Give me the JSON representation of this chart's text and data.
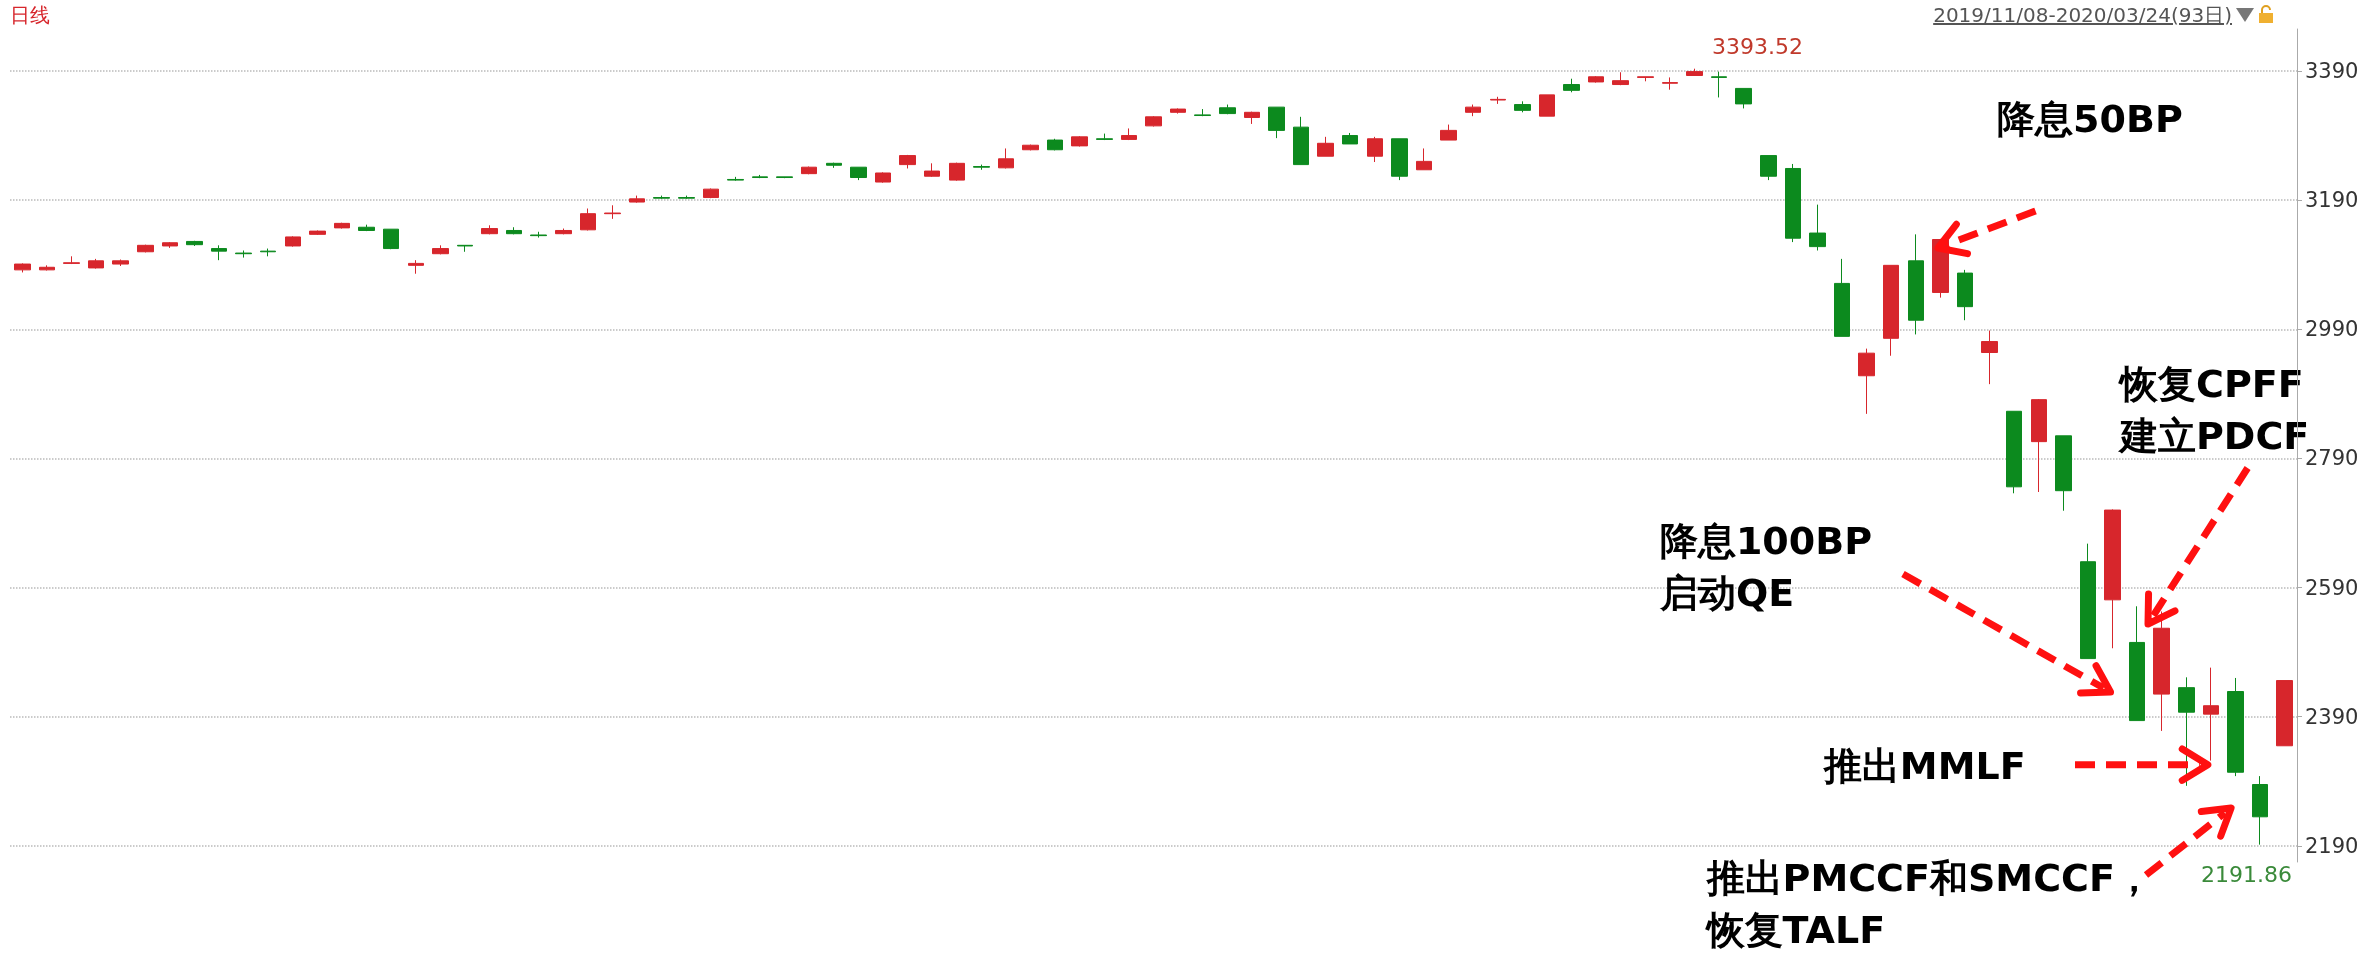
{
  "chart_data": {
    "type": "candlestick",
    "title": "日线",
    "subtitle": "2019/11/08-2020/03/24(93日)",
    "categories": [
      null,
      null,
      null,
      null,
      null,
      null,
      null,
      null,
      null,
      null,
      null,
      null,
      null,
      null,
      null,
      null,
      null,
      null,
      null,
      null,
      null,
      null,
      null,
      null,
      null,
      null,
      null,
      null,
      null,
      null,
      null,
      null,
      null,
      null,
      null,
      null,
      null,
      null,
      null,
      null,
      null,
      null,
      null,
      null,
      null,
      null,
      null,
      null,
      null,
      null,
      null,
      null,
      null,
      null,
      null,
      null,
      null,
      null,
      null,
      null,
      null,
      null,
      null,
      null,
      null,
      null,
      null,
      null,
      null,
      null,
      null,
      null,
      null,
      null,
      null,
      null,
      null,
      null,
      null,
      null,
      null,
      null,
      null,
      null,
      null,
      null,
      null,
      null,
      null,
      null,
      null,
      null,
      null
    ],
    "ohlc": [
      [
        3082,
        3092,
        3078,
        3091
      ],
      [
        3082,
        3089,
        3081,
        3086
      ],
      [
        3092,
        3103,
        3091,
        3093
      ],
      [
        3085,
        3099,
        3084,
        3096
      ],
      [
        3091,
        3098,
        3088,
        3096
      ],
      [
        3110,
        3121,
        3109,
        3120
      ],
      [
        3119,
        3125,
        3116,
        3124
      ],
      [
        3126,
        3127,
        3119,
        3121
      ],
      [
        3115,
        3120,
        3097,
        3111
      ],
      [
        3108,
        3112,
        3101,
        3107
      ],
      [
        3111,
        3115,
        3103,
        3110
      ],
      [
        3119,
        3134,
        3118,
        3133
      ],
      [
        3137,
        3143,
        3136,
        3142
      ],
      [
        3147,
        3155,
        3146,
        3154
      ],
      [
        3148,
        3152,
        3142,
        3143
      ],
      [
        3145,
        3145,
        3114,
        3115
      ],
      [
        3089,
        3097,
        3076,
        3092
      ],
      [
        3107,
        3120,
        3106,
        3115
      ],
      [
        3120,
        3120,
        3110,
        3119
      ],
      [
        3138,
        3151,
        3137,
        3146
      ],
      [
        3143,
        3148,
        3137,
        3138
      ],
      [
        3136,
        3141,
        3132,
        3135
      ],
      [
        3138,
        3146,
        3137,
        3143
      ],
      [
        3144,
        3177,
        3143,
        3169
      ],
      [
        3169,
        3182,
        3161,
        3170
      ],
      [
        3187,
        3197,
        3186,
        3192
      ],
      [
        3194,
        3197,
        3192,
        3193
      ],
      [
        3194,
        3197,
        3192,
        3193
      ],
      [
        3194,
        3208,
        3193,
        3207
      ],
      [
        3222,
        3226,
        3220,
        3221
      ],
      [
        3226,
        3229,
        3224,
        3225
      ],
      [
        3226,
        3226,
        3224,
        3225
      ],
      [
        3231,
        3242,
        3230,
        3241
      ],
      [
        3247,
        3248,
        3240,
        3244
      ],
      [
        3241,
        3241,
        3221,
        3225
      ],
      [
        3218,
        3233,
        3217,
        3232
      ],
      [
        3245,
        3260,
        3239,
        3259
      ],
      [
        3227,
        3247,
        3226,
        3235
      ],
      [
        3221,
        3248,
        3220,
        3247
      ],
      [
        3242,
        3245,
        3237,
        3241
      ],
      [
        3240,
        3270,
        3239,
        3254
      ],
      [
        3268,
        3276,
        3267,
        3275
      ],
      [
        3283,
        3285,
        3267,
        3268
      ],
      [
        3274,
        3289,
        3273,
        3288
      ],
      [
        3285,
        3293,
        3283,
        3284
      ],
      [
        3284,
        3301,
        3283,
        3290
      ],
      [
        3305,
        3320,
        3304,
        3319
      ],
      [
        3326,
        3332,
        3324,
        3331
      ],
      [
        3322,
        3331,
        3320,
        3321
      ],
      [
        3333,
        3338,
        3323,
        3324
      ],
      [
        3318,
        3327,
        3308,
        3326
      ],
      [
        3334,
        3334,
        3286,
        3298
      ],
      [
        3303,
        3319,
        3245,
        3245
      ],
      [
        3258,
        3288,
        3258,
        3278
      ],
      [
        3290,
        3294,
        3277,
        3277
      ],
      [
        3258,
        3288,
        3249,
        3285
      ],
      [
        3285,
        3285,
        3221,
        3227
      ],
      [
        3237,
        3270,
        3237,
        3250
      ],
      [
        3283,
        3307,
        3283,
        3298
      ],
      [
        3326,
        3338,
        3320,
        3334
      ],
      [
        3345,
        3350,
        3339,
        3346
      ],
      [
        3338,
        3343,
        3326,
        3329
      ],
      [
        3320,
        3353,
        3320,
        3353
      ],
      [
        3369,
        3378,
        3357,
        3360
      ],
      [
        3373,
        3382,
        3372,
        3381
      ],
      [
        3369,
        3388,
        3368,
        3375
      ],
      [
        3380,
        3381,
        3374,
        3381
      ],
      [
        3371,
        3380,
        3361,
        3372
      ],
      [
        3383,
        3393.52,
        3383,
        3389
      ],
      [
        3381,
        3389,
        3349,
        3380
      ],
      [
        3363,
        3363,
        3332,
        3339
      ],
      [
        3259,
        3259,
        3221,
        3227
      ],
      [
        3239,
        3246,
        3125,
        3131
      ],
      [
        3139,
        3183,
        3112,
        3118
      ],
      [
        3061,
        3099,
        2979,
        2979
      ],
      [
        2918,
        2960,
        2859,
        2953
      ],
      [
        2976,
        3089,
        2949,
        3089
      ],
      [
        3096,
        3137,
        2982,
        3004
      ],
      [
        3047,
        3130,
        3039,
        3129
      ],
      [
        3077,
        3082,
        3004,
        3025
      ],
      [
        2954,
        2988,
        2905,
        2971
      ],
      [
        2863,
        2863,
        2736,
        2746
      ],
      [
        2816,
        2882,
        2738,
        2881
      ],
      [
        2825,
        2825,
        2709,
        2740
      ],
      [
        2630,
        2658,
        2480,
        2480
      ],
      [
        2571,
        2711,
        2496,
        2710
      ],
      [
        2505,
        2561,
        2384,
        2384
      ],
      [
        2425,
        2553,
        2368,
        2527
      ],
      [
        2435,
        2451,
        2283,
        2397
      ],
      [
        2394,
        2466,
        2322,
        2407
      ],
      [
        2429,
        2450,
        2298,
        2304
      ],
      [
        2285,
        2298,
        2191.86,
        2235
      ],
      [
        2345,
        2446,
        2345,
        2446
      ]
    ],
    "colors": [
      "#d7262c",
      "#d7262c",
      "#d7262c",
      "#d7262c",
      "#d7262c",
      "#d7262c",
      "#d7262c",
      "#0c8a1e",
      "#0c8a1e",
      "#0c8a1e",
      "#0c8a1e",
      "#d7262c",
      "#d7262c",
      "#d7262c",
      "#0c8a1e",
      "#0c8a1e",
      "#d7262c",
      "#d7262c",
      "#0c8a1e",
      "#d7262c",
      "#0c8a1e",
      "#0c8a1e",
      "#d7262c",
      "#d7262c",
      "#d7262c",
      "#d7262c",
      "#0c8a1e",
      "#0c8a1e",
      "#d7262c",
      "#0c8a1e",
      "#0c8a1e",
      "#0c8a1e",
      "#d7262c",
      "#0c8a1e",
      "#0c8a1e",
      "#d7262c",
      "#d7262c",
      "#d7262c",
      "#d7262c",
      "#0c8a1e",
      "#d7262c",
      "#d7262c",
      "#0c8a1e",
      "#d7262c",
      "#0c8a1e",
      "#d7262c",
      "#d7262c",
      "#d7262c",
      "#0c8a1e",
      "#0c8a1e",
      "#d7262c",
      "#0c8a1e",
      "#0c8a1e",
      "#d7262c",
      "#0c8a1e",
      "#d7262c",
      "#0c8a1e",
      "#d7262c",
      "#d7262c",
      "#d7262c",
      "#d7262c",
      "#0c8a1e",
      "#d7262c",
      "#0c8a1e",
      "#d7262c",
      "#d7262c",
      "#d7262c",
      "#d7262c",
      "#d7262c",
      "#0c8a1e",
      "#0c8a1e",
      "#0c8a1e",
      "#0c8a1e",
      "#0c8a1e",
      "#0c8a1e",
      "#d7262c",
      "#d7262c",
      "#0c8a1e",
      "#d7262c",
      "#0c8a1e",
      "#d7262c",
      "#0c8a1e",
      "#d7262c",
      "#0c8a1e",
      "#0c8a1e",
      "#d7262c",
      "#0c8a1e",
      "#d7262c",
      "#0c8a1e",
      "#d7262c",
      "#0c8a1e",
      "#0c8a1e",
      "#d7262c"
    ],
    "ylim": [
      2165,
      3455
    ],
    "yticks": [
      2190,
      2390,
      2590,
      2790,
      2990,
      3190,
      3390
    ],
    "grid": "y",
    "annotations": [
      "降息50BP",
      "降息100BP",
      "启动QE",
      "恢复CPFF",
      "建立PDCF",
      "推出MMLF",
      "推出PMCCF和SMCCF，",
      "恢复TALF",
      "3393.52",
      "2191.86"
    ]
  }
}
